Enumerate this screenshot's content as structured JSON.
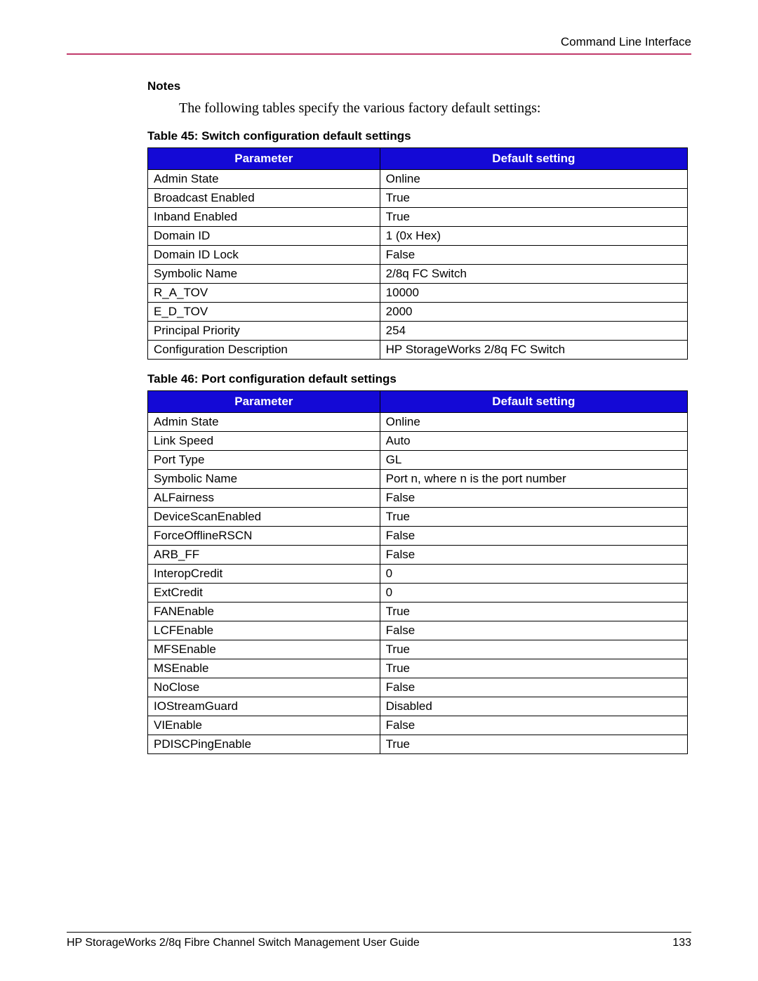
{
  "header": {
    "section_label": "Command Line Interface"
  },
  "notes_heading": "Notes",
  "intro_text": "The following tables specify the various factory default settings:",
  "table45": {
    "caption": "Table 45:  Switch configuration default settings",
    "columns": [
      "Parameter",
      "Default setting"
    ],
    "rows": [
      [
        "Admin State",
        "Online"
      ],
      [
        "Broadcast Enabled",
        "True"
      ],
      [
        "Inband Enabled",
        "True"
      ],
      [
        "Domain ID",
        "1 (0x Hex)"
      ],
      [
        "Domain ID Lock",
        "False"
      ],
      [
        "Symbolic Name",
        "2/8q FC Switch"
      ],
      [
        "R_A_TOV",
        "10000"
      ],
      [
        "E_D_TOV",
        "2000"
      ],
      [
        "Principal Priority",
        "254"
      ],
      [
        "Configuration Description",
        "HP StorageWorks 2/8q FC Switch"
      ]
    ]
  },
  "table46": {
    "caption": "Table 46:  Port configuration default settings",
    "columns": [
      "Parameter",
      "Default setting"
    ],
    "rows": [
      [
        "Admin State",
        "Online"
      ],
      [
        "Link Speed",
        "Auto"
      ],
      [
        "Port Type",
        "GL"
      ],
      [
        "Symbolic Name",
        "Port n, where n is the port number"
      ],
      [
        "ALFairness",
        "False"
      ],
      [
        "DeviceScanEnabled",
        "True"
      ],
      [
        "ForceOfflineRSCN",
        "False"
      ],
      [
        "ARB_FF",
        "False"
      ],
      [
        "InteropCredit",
        "0"
      ],
      [
        "ExtCredit",
        "0"
      ],
      [
        "FANEnable",
        "True"
      ],
      [
        "LCFEnable",
        "False"
      ],
      [
        "MFSEnable",
        "True"
      ],
      [
        "MSEnable",
        "True"
      ],
      [
        "NoClose",
        "False"
      ],
      [
        "IOStreamGuard",
        "Disabled"
      ],
      [
        "VIEnable",
        "False"
      ],
      [
        "PDISCPingEnable",
        "True"
      ]
    ]
  },
  "footer": {
    "title": "HP StorageWorks 2/8q Fibre Channel Switch Management User Guide",
    "page": "133"
  },
  "colors": {
    "header_bg": "#1409d6",
    "header_text": "#ffffff",
    "hr_color": "#c13a6b",
    "border": "#000000"
  }
}
